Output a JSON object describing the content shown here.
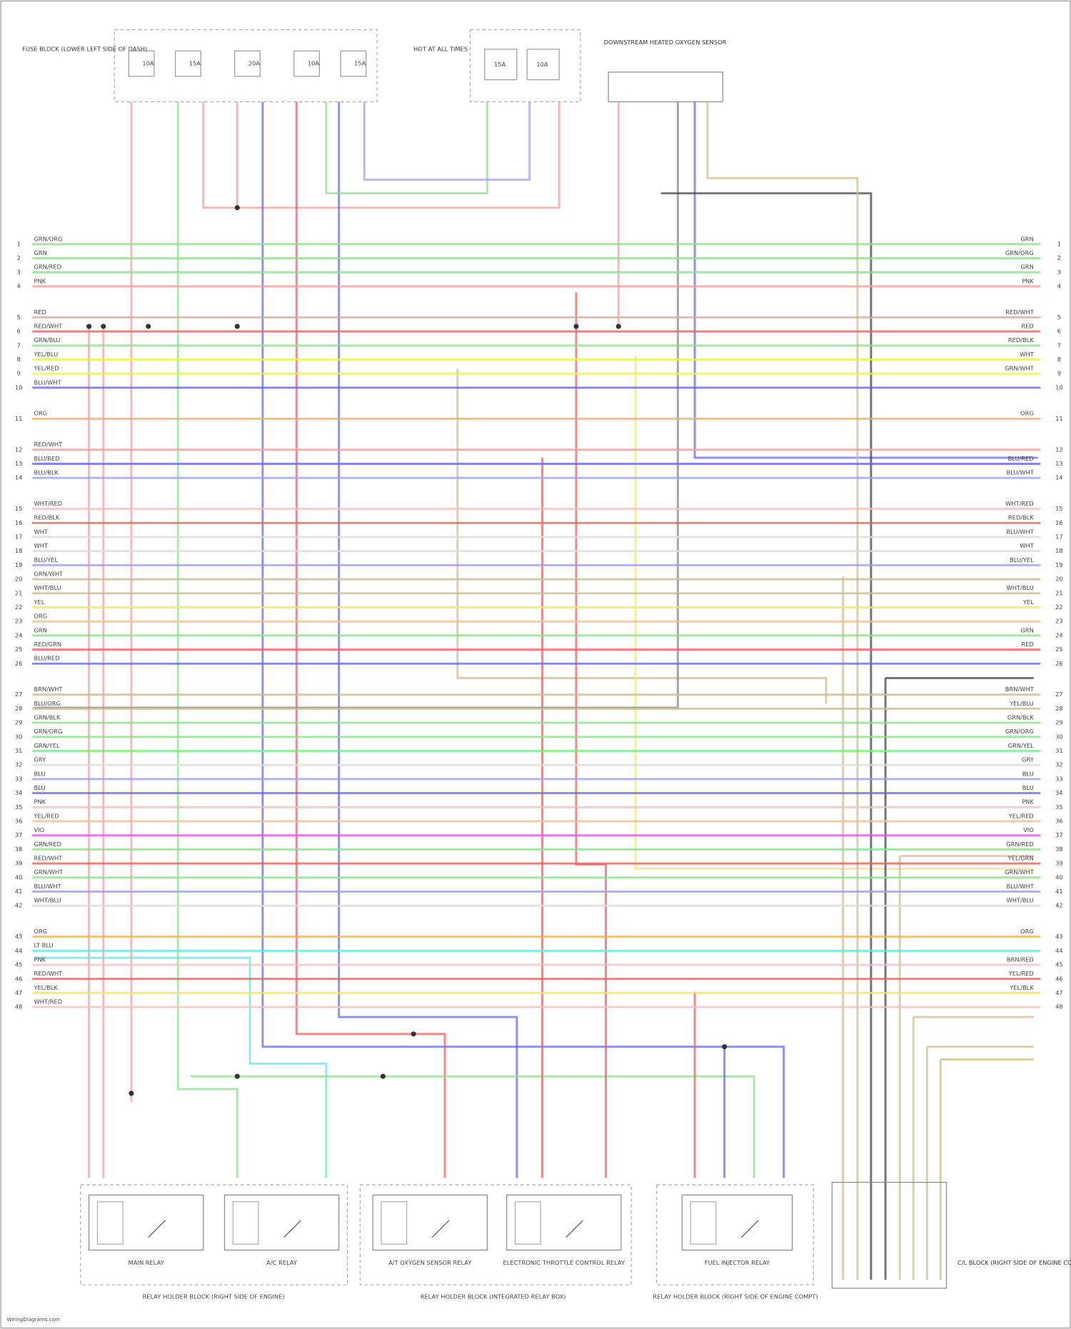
{
  "fuse_block": {
    "label": "FUSE BLOCK (LOWER LEFT SIDE OF DASH)",
    "fuses": [
      "10A",
      "15A",
      "20A",
      "10A",
      "15A"
    ]
  },
  "ignition": {
    "label": "HOT AT ALL TIMES",
    "fuses": [
      "15A",
      "10A"
    ]
  },
  "sensor": {
    "label": "DOWNSTREAM HEATED OXYGEN SENSOR"
  },
  "connector": {
    "groups": [
      [
        {
          "pin": "1",
          "left": "GRN/ORG",
          "right": "GRN",
          "color": "#8ee08e"
        },
        {
          "pin": "2",
          "left": "GRN",
          "right": "GRN/ORG",
          "color": "#8ee08e"
        },
        {
          "pin": "3",
          "left": "GRN/RED",
          "right": "GRN",
          "color": "#8ee08e"
        },
        {
          "pin": "4",
          "left": "PNK",
          "right": "PNK",
          "color": "#f4a0a0"
        }
      ],
      [
        {
          "pin": "5",
          "left": "RED",
          "right": "RED/WHT",
          "color": "#f4a0a0"
        },
        {
          "pin": "6",
          "left": "RED/WHT",
          "right": "RED",
          "color": "#f06060"
        },
        {
          "pin": "7",
          "left": "GRN/BLU",
          "right": "RED/BLK",
          "color": "#8ee08e"
        },
        {
          "pin": "8",
          "left": "YEL/BLU",
          "right": "WHT",
          "color": "#ecec70"
        },
        {
          "pin": "9",
          "left": "YEL/RED",
          "right": "GRN/WHT",
          "color": "#ecec70"
        },
        {
          "pin": "10",
          "left": "BLU/WHT",
          "color": "#6a6af0"
        }
      ],
      [
        {
          "pin": "11",
          "left": "ORG",
          "right": "ORG",
          "color": "#f4b060"
        }
      ],
      [
        {
          "pin": "12",
          "left": "RED/WHT",
          "color": "#f4a0a0"
        },
        {
          "pin": "13",
          "left": "BLU/RED",
          "right": "BLU/RED",
          "color": "#6a6af0"
        },
        {
          "pin": "14",
          "left": "BLU/BLK",
          "right": "BLU/WHT",
          "color": "#a0a0f0"
        }
      ],
      [
        {
          "pin": "15",
          "left": "WHT/RED",
          "right": "WHT/RED",
          "color": "#f4c0c0"
        },
        {
          "pin": "16",
          "left": "RED/BLK",
          "right": "RED/BLK",
          "color": "#f06060"
        },
        {
          "pin": "17",
          "left": "WHT",
          "right": "BLU/WHT",
          "color": "#dddddd"
        },
        {
          "pin": "18",
          "left": "WHT",
          "right": "WHT",
          "color": "#dddddd"
        },
        {
          "pin": "19",
          "left": "BLU/YEL",
          "right": "BLU/YEL",
          "color": "#a0a0f0"
        },
        {
          "pin": "20",
          "left": "GRN/WHT",
          "color": "#cdbd90"
        },
        {
          "pin": "21",
          "left": "WHT/BLU",
          "right": "WHT/BLU",
          "color": "#cdbd90"
        },
        {
          "pin": "22",
          "left": "YEL",
          "right": "YEL",
          "color": "#f0f040"
        },
        {
          "pin": "23",
          "left": "ORG",
          "color": "#f4c090"
        },
        {
          "pin": "24",
          "left": "GRN",
          "right": "GRN",
          "color": "#8ee08e"
        },
        {
          "pin": "25",
          "left": "RED/GRN",
          "right": "RED",
          "color": "#f06060"
        },
        {
          "pin": "26",
          "left": "BLU/RED",
          "color": "#6a6af0"
        }
      ],
      [
        {
          "pin": "27",
          "left": "BRN/WHT",
          "right": "BRN/WHT",
          "color": "#cdbd90"
        },
        {
          "pin": "28",
          "left": "BLU/ORG",
          "right": "YEL/BLU",
          "color": "#cdbd90"
        },
        {
          "pin": "29",
          "left": "GRN/BLK",
          "right": "GRN/BLK",
          "color": "#8ee08e"
        },
        {
          "pin": "30",
          "left": "GRN/ORG",
          "right": "GRN/ORG",
          "color": "#8ee08e"
        },
        {
          "pin": "31",
          "left": "GRN/YEL",
          "right": "GRN/YEL",
          "color": "#8ee08e"
        },
        {
          "pin": "32",
          "left": "GRY",
          "right": "GRY",
          "color": "#dddddd"
        },
        {
          "pin": "33",
          "left": "BLU",
          "right": "BLU",
          "color": "#a0a0f0"
        },
        {
          "pin": "34",
          "left": "BLU",
          "right": "BLU",
          "color": "#6a6af0"
        },
        {
          "pin": "35",
          "left": "PNK",
          "right": "PNK",
          "color": "#f4c0c0"
        },
        {
          "pin": "36",
          "left": "YEL/RED",
          "right": "YEL/RED",
          "color": "#f4c090"
        },
        {
          "pin": "37",
          "left": "VIO",
          "right": "VIO",
          "color": "#f050f0"
        },
        {
          "pin": "38",
          "left": "GRN/RED",
          "right": "GRN/RED",
          "color": "#8ee08e"
        },
        {
          "pin": "39",
          "left": "RED/WHT",
          "right": "YEL/GRN",
          "color": "#f06060"
        },
        {
          "pin": "40",
          "left": "GRN/WHT",
          "right": "GRN/WHT",
          "color": "#8ee08e"
        },
        {
          "pin": "41",
          "left": "BLU/WHT",
          "right": "BLU/WHT",
          "color": "#a0a0f0"
        },
        {
          "pin": "42",
          "left": "WHT/BLU",
          "right": "WHT/BLU",
          "color": "#dddddd"
        }
      ],
      [
        {
          "pin": "43",
          "left": "ORG",
          "right": "ORG",
          "color": "#f4b060"
        },
        {
          "pin": "44",
          "left": "LT BLU",
          "color": "#70e0e0"
        },
        {
          "pin": "45",
          "left": "PNK",
          "right": "BRN/RED",
          "color": "#f4c0c0"
        },
        {
          "pin": "46",
          "left": "RED/WHT",
          "right": "YEL/RED",
          "color": "#f06060"
        },
        {
          "pin": "47",
          "left": "YEL/BLK",
          "right": "YEL/BLK",
          "color": "#f0f040"
        },
        {
          "pin": "48",
          "left": "WHT/RED",
          "color": "#f4c0c0"
        }
      ]
    ]
  },
  "relays": [
    {
      "label": "MAIN RELAY"
    },
    {
      "label": "A/C RELAY"
    },
    {
      "label": "A/T OXYGEN SENSOR RELAY"
    },
    {
      "label": "ELECTRONIC THROTTLE CONTROL RELAY"
    },
    {
      "label": "FUEL INJECTOR RELAY"
    }
  ],
  "relay_blocks": [
    {
      "label": "RELAY HOLDER BLOCK (RIGHT SIDE OF ENGINE)"
    },
    {
      "label": "RELAY HOLDER BLOCK (INTEGRATED RELAY BOX)"
    },
    {
      "label": "RELAY HOLDER BLOCK (RIGHT SIDE OF ENGINE COMPT)"
    }
  ],
  "ground_block": {
    "label": "C/L BLOCK (RIGHT SIDE OF ENGINE COMPT)"
  },
  "footer": "WiringDiagrams.com"
}
